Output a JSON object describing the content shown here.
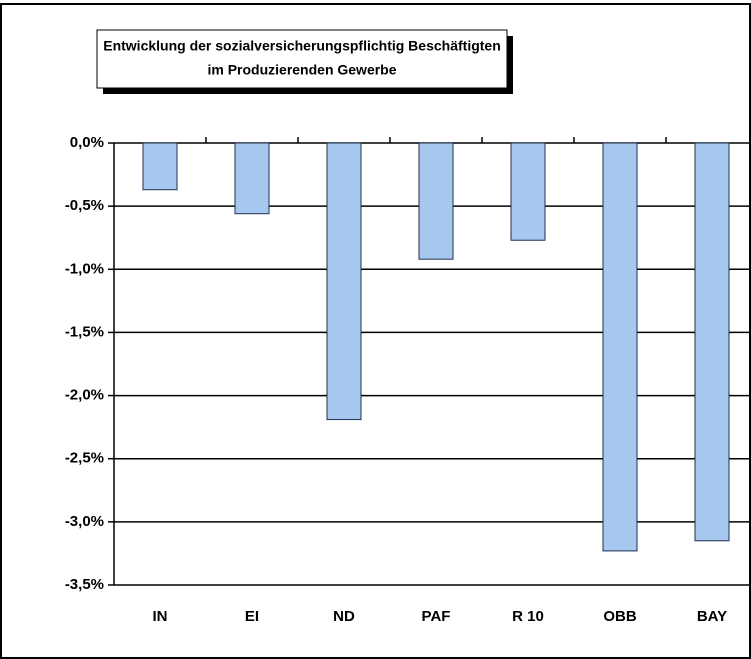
{
  "chart_data": {
    "type": "bar",
    "title": [
      "Entwicklung der sozialversicherungspflichtig Beschäftigten",
      "im Produzierenden Gewerbe"
    ],
    "categories": [
      "IN",
      "EI",
      "ND",
      "PAF",
      "R 10",
      "OBB",
      "BAY"
    ],
    "values": [
      -0.37,
      -0.56,
      -2.19,
      -0.92,
      -0.77,
      -3.23,
      -3.15
    ],
    "color": "#a6c8ee",
    "ylim": [
      -3.5,
      0
    ],
    "yticks": [
      {
        "value": 0,
        "label": "0,0%"
      },
      {
        "value": -0.5,
        "label": "-0,5%"
      },
      {
        "value": -1,
        "label": "-1,0%"
      },
      {
        "value": -1.5,
        "label": "-1,5%"
      },
      {
        "value": -2,
        "label": "-2,0%"
      },
      {
        "value": -2.5,
        "label": "-2,5%"
      },
      {
        "value": -3,
        "label": "-3,0%"
      },
      {
        "value": -3.5,
        "label": "-3,5%"
      }
    ],
    "grid": true
  }
}
